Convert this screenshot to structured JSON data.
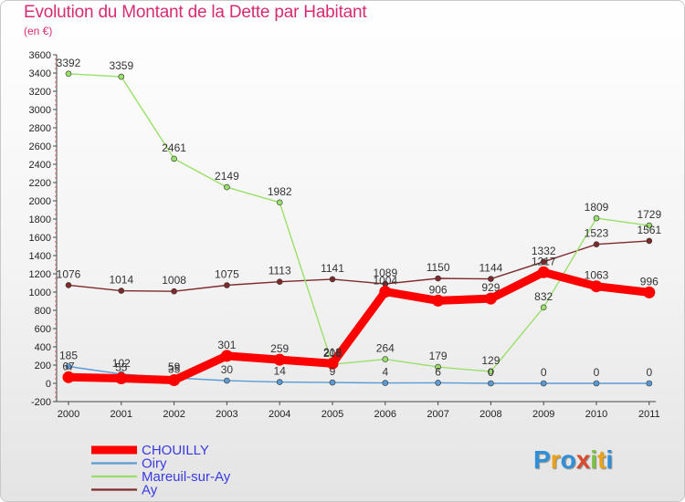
{
  "title": "Evolution du Montant de la Dette par Habitant",
  "subtitle": "(en €)",
  "logo": {
    "text": "Proxiti",
    "colors": [
      "#2f8fd8",
      "#e8a31a",
      "#2f8fd8",
      "#d94b2b",
      "#7cc242",
      "#e8a31a",
      "#2f8fd8"
    ]
  },
  "chart_data": {
    "type": "line",
    "title": "Evolution du Montant de la Dette par Habitant",
    "ylabel": "(en €)",
    "xlabel": "",
    "x": [
      "2000",
      "2001",
      "2002",
      "2003",
      "2004",
      "2005",
      "2006",
      "2007",
      "2008",
      "2009",
      "2010",
      "2011"
    ],
    "ylim": [
      -200,
      3600
    ],
    "yticks": [
      -200,
      0,
      200,
      400,
      600,
      800,
      1000,
      1200,
      1400,
      1600,
      1800,
      2000,
      2200,
      2400,
      2600,
      2800,
      3000,
      3200,
      3400,
      3600
    ],
    "grid": false,
    "legend_position": "bottom-left",
    "series": [
      {
        "name": "CHOUILLY",
        "color": "#ff0000",
        "values": [
          67,
          55,
          35,
          301,
          259,
          218,
          1004,
          906,
          929,
          1217,
          1063,
          996
        ],
        "labels": [
          "67",
          "55",
          "35",
          "301",
          "259",
          "218",
          "1004",
          "906",
          "929",
          "1217",
          "1063",
          "996"
        ]
      },
      {
        "name": "Oiry",
        "color": "#5b9bd5",
        "values": [
          185,
          102,
          59,
          30,
          14,
          9,
          4,
          6,
          0,
          0,
          0,
          0
        ],
        "labels": [
          "185",
          "102",
          "59",
          "30",
          "14",
          "9",
          "4",
          "6",
          "0",
          "0",
          "0",
          "0"
        ]
      },
      {
        "name": "Mareuil-sur-Ay",
        "color": "#99e06a",
        "values": [
          3392,
          3359,
          2461,
          2149,
          1982,
          208,
          264,
          179,
          129,
          832,
          1809,
          1729
        ],
        "labels": [
          "3392",
          "3359",
          "2461",
          "2149",
          "1982",
          "208",
          "264",
          "179",
          "129",
          "832",
          "1809",
          "1729"
        ]
      },
      {
        "name": "Ay",
        "color": "#7f2a2a",
        "values": [
          1076,
          1014,
          1008,
          1075,
          1113,
          1141,
          1089,
          1150,
          1144,
          1332,
          1523,
          1561
        ],
        "labels": [
          "1076",
          "1014",
          "1008",
          "1075",
          "1113",
          "1141",
          "1089",
          "1150",
          "1144",
          "1332",
          "1523",
          "1561"
        ]
      }
    ]
  }
}
